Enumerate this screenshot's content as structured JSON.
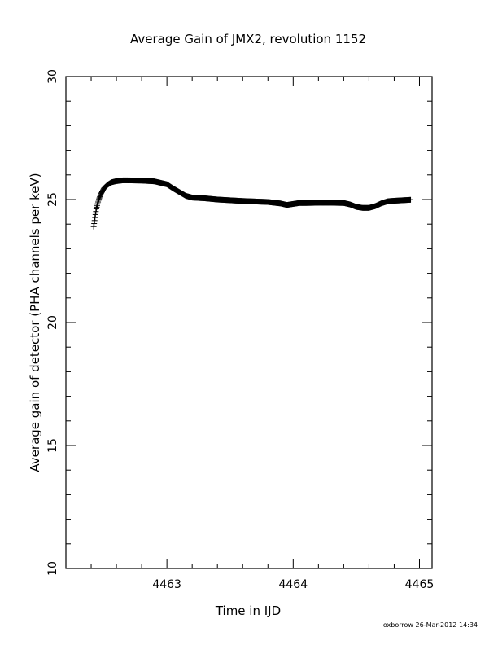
{
  "chart_data": {
    "type": "scatter",
    "title": "Average Gain of JMX2, revolution 1152",
    "xlabel": "Time in IJD",
    "ylabel": "Average gain of detector (PHA channels per keV)",
    "footer": "oxborrow 26-Mar-2012 14:34",
    "xlim": [
      4462.2,
      4465.1
    ],
    "ylim": [
      10,
      30
    ],
    "x_major_ticks": [
      4463,
      4464,
      4465
    ],
    "x_minor_step": 0.2,
    "y_major_ticks": [
      10,
      15,
      20,
      25,
      30
    ],
    "y_minor_step": 1,
    "marker": "plus",
    "grid": false,
    "series": [
      {
        "x": [
          4462.42,
          4462.44,
          4462.46,
          4462.48,
          4462.5,
          4462.53,
          4462.56,
          4462.6,
          4462.65,
          4462.7,
          4462.8,
          4462.9,
          4463.0,
          4463.05,
          4463.1,
          4463.15,
          4463.2,
          4463.3,
          4463.4,
          4463.5,
          4463.6,
          4463.7,
          4463.8,
          4463.9,
          4463.95,
          4464.0,
          4464.05,
          4464.1,
          4464.2,
          4464.3,
          4464.4,
          4464.45,
          4464.5,
          4464.55,
          4464.6,
          4464.65,
          4464.7,
          4464.75,
          4464.8,
          4464.9,
          4464.93
        ],
        "y": [
          23.9,
          24.6,
          25.0,
          25.25,
          25.45,
          25.6,
          25.7,
          25.75,
          25.78,
          25.78,
          25.77,
          25.74,
          25.62,
          25.45,
          25.3,
          25.15,
          25.08,
          25.05,
          25.0,
          24.97,
          24.94,
          24.92,
          24.9,
          24.84,
          24.78,
          24.82,
          24.86,
          24.86,
          24.87,
          24.87,
          24.86,
          24.8,
          24.7,
          24.66,
          24.66,
          24.73,
          24.85,
          24.93,
          24.95,
          24.98,
          24.99
        ]
      }
    ]
  }
}
